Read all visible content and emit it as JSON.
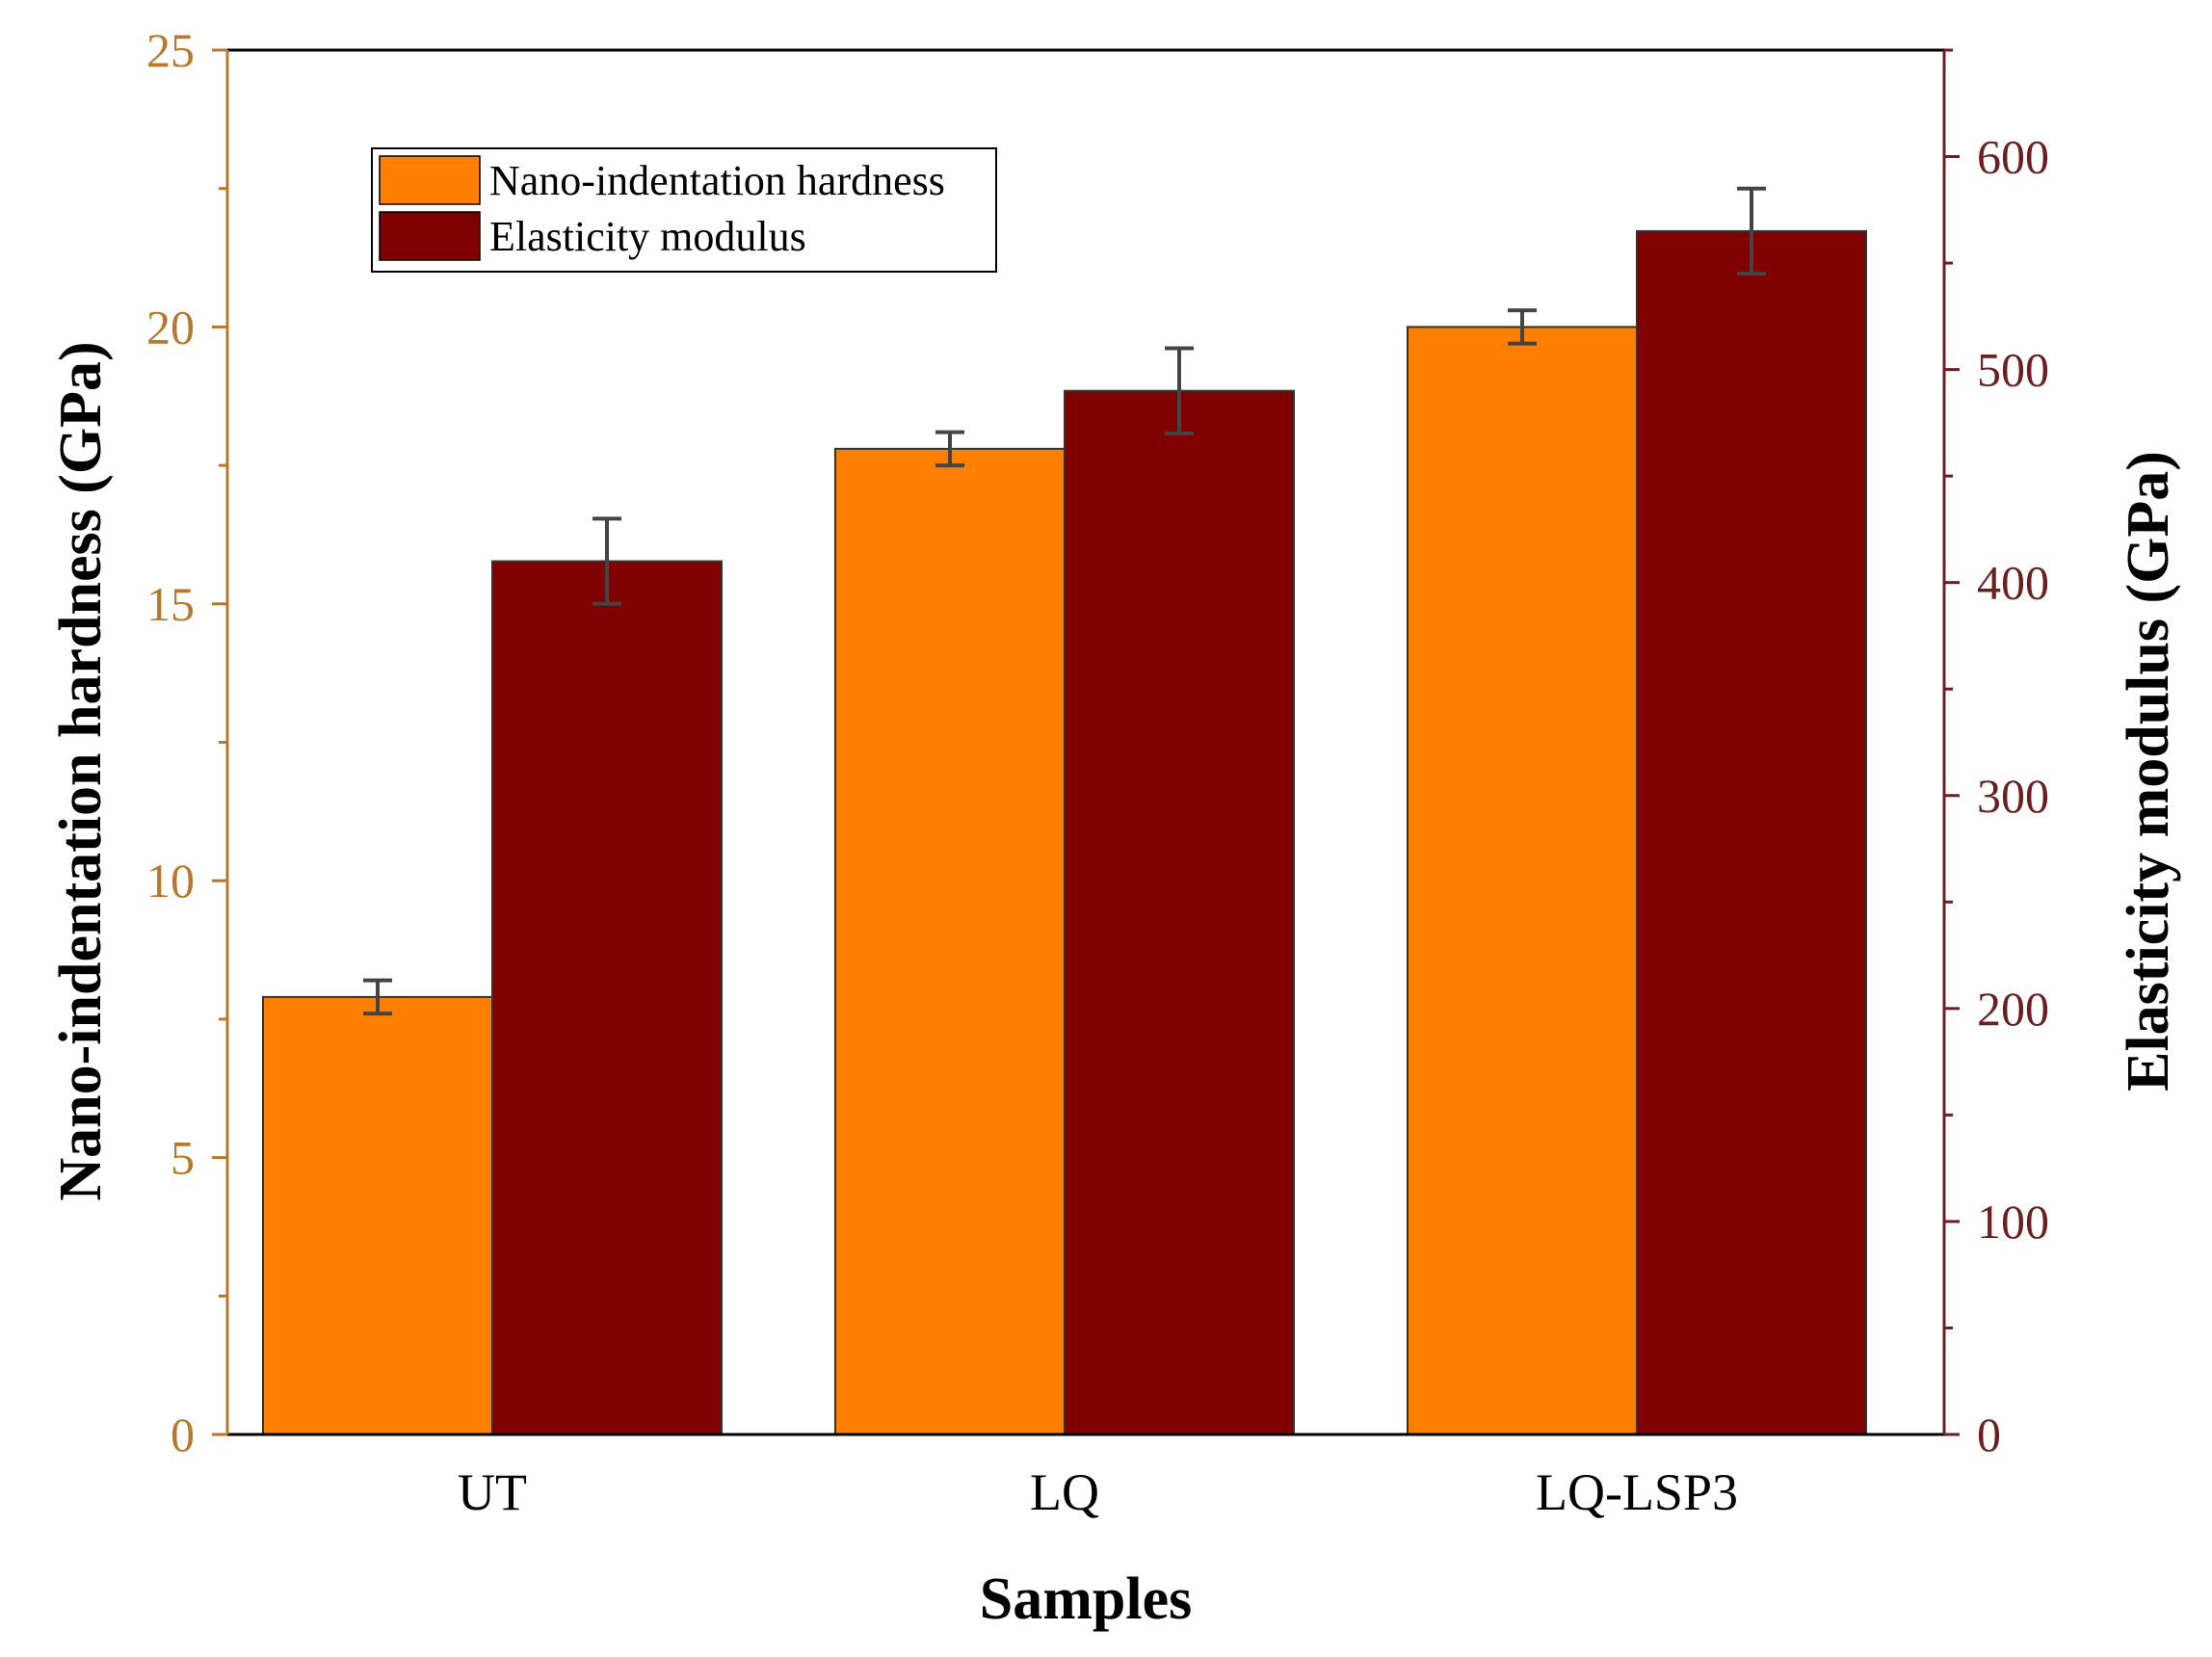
{
  "colors": {
    "hardness": "#FF8000",
    "modulus": "#800000",
    "left_axis": "#B8782C",
    "right_axis": "#6B1F1F",
    "error_bar": "#444444"
  },
  "chart_data": {
    "type": "bar",
    "categories": [
      "UT",
      "LQ",
      "LQ-LSP3"
    ],
    "xlabel": "Samples",
    "y_left": {
      "label": "Nano-indentation hardness (GPa)",
      "lim": [
        0,
        25
      ],
      "ticks": [
        0,
        5,
        10,
        15,
        20,
        25
      ]
    },
    "y_right": {
      "label": "Elasticity modulus (GPa)",
      "lim": [
        0,
        650
      ],
      "ticks": [
        0,
        100,
        200,
        300,
        400,
        500,
        600
      ]
    },
    "series": [
      {
        "name": "Nano-indentation hardness",
        "axis": "left",
        "values": [
          7.9,
          17.8,
          20.0
        ],
        "errors": [
          0.3,
          0.3,
          0.3
        ]
      },
      {
        "name": "Elasticity modulus",
        "axis": "right",
        "values": [
          410,
          490,
          565
        ],
        "errors": [
          20,
          20,
          20
        ]
      }
    ],
    "legend_position": "top-left",
    "grid": false
  }
}
